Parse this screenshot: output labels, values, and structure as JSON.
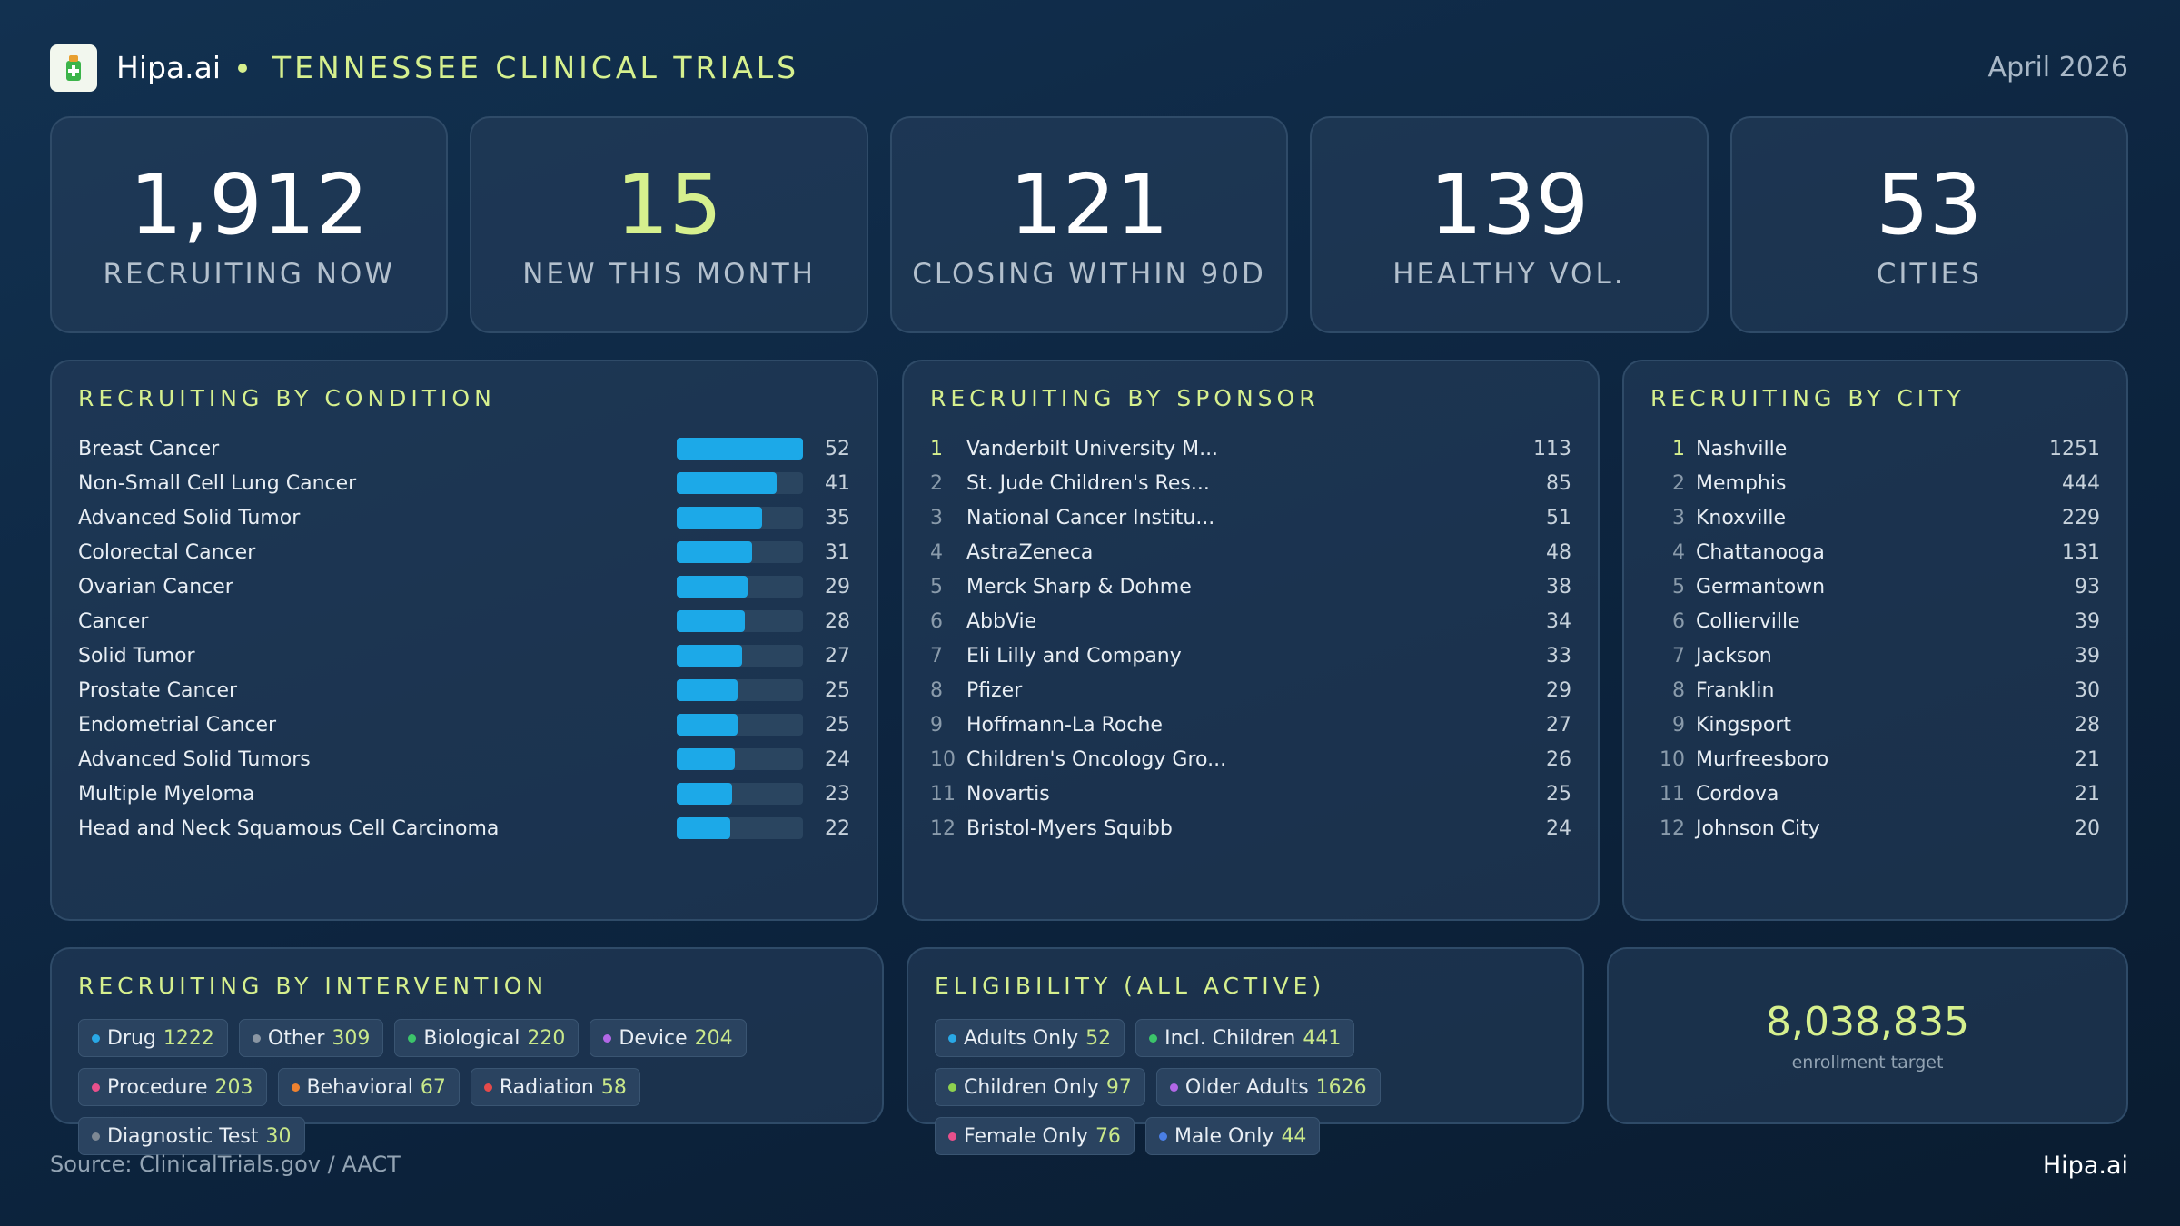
{
  "header": {
    "brand": "Hipa.ai",
    "title": "TENNESSEE CLINICAL TRIALS",
    "date": "April 2026"
  },
  "kpis": [
    {
      "value": "1,912",
      "label": "RECRUITING NOW",
      "color": "#ffffff"
    },
    {
      "value": "15",
      "label": "NEW THIS MONTH",
      "color": "#d6f08e"
    },
    {
      "value": "121",
      "label": "CLOSING WITHIN 90D",
      "color": "#ffffff"
    },
    {
      "value": "139",
      "label": "HEALTHY VOL.",
      "color": "#ffffff"
    },
    {
      "value": "53",
      "label": "CITIES",
      "color": "#ffffff"
    }
  ],
  "conditions": {
    "title": "RECRUITING BY CONDITION",
    "bar_color": "#1ca9e8",
    "rows": [
      {
        "name": "Breast Cancer",
        "value": 52
      },
      {
        "name": "Non-Small Cell Lung Cancer",
        "value": 41
      },
      {
        "name": "Advanced Solid Tumor",
        "value": 35
      },
      {
        "name": "Colorectal Cancer",
        "value": 31
      },
      {
        "name": "Ovarian Cancer",
        "value": 29
      },
      {
        "name": "Cancer",
        "value": 28
      },
      {
        "name": "Solid Tumor",
        "value": 27
      },
      {
        "name": "Prostate Cancer",
        "value": 25
      },
      {
        "name": "Endometrial Cancer",
        "value": 25
      },
      {
        "name": "Advanced Solid Tumors",
        "value": 24
      },
      {
        "name": "Multiple Myeloma",
        "value": 23
      },
      {
        "name": "Head and Neck Squamous Cell Carcinoma",
        "value": 22
      }
    ]
  },
  "sponsors": {
    "title": "RECRUITING BY SPONSOR",
    "rows": [
      {
        "rank": 1,
        "name": "Vanderbilt University M...",
        "value": 113
      },
      {
        "rank": 2,
        "name": "St. Jude Children's Res...",
        "value": 85
      },
      {
        "rank": 3,
        "name": "National Cancer Institu...",
        "value": 51
      },
      {
        "rank": 4,
        "name": "AstraZeneca",
        "value": 48
      },
      {
        "rank": 5,
        "name": "Merck Sharp & Dohme",
        "value": 38
      },
      {
        "rank": 6,
        "name": "AbbVie",
        "value": 34
      },
      {
        "rank": 7,
        "name": "Eli Lilly and Company",
        "value": 33
      },
      {
        "rank": 8,
        "name": "Pfizer",
        "value": 29
      },
      {
        "rank": 9,
        "name": "Hoffmann-La Roche",
        "value": 27
      },
      {
        "rank": 10,
        "name": "Children's Oncology Gro...",
        "value": 26
      },
      {
        "rank": 11,
        "name": "Novartis",
        "value": 25
      },
      {
        "rank": 12,
        "name": "Bristol-Myers Squibb",
        "value": 24
      }
    ]
  },
  "cities": {
    "title": "RECRUITING BY CITY",
    "rows": [
      {
        "rank": 1,
        "name": "Nashville",
        "value": 1251
      },
      {
        "rank": 2,
        "name": "Memphis",
        "value": 444
      },
      {
        "rank": 3,
        "name": "Knoxville",
        "value": 229
      },
      {
        "rank": 4,
        "name": "Chattanooga",
        "value": 131
      },
      {
        "rank": 5,
        "name": "Germantown",
        "value": 93
      },
      {
        "rank": 6,
        "name": "Collierville",
        "value": 39
      },
      {
        "rank": 7,
        "name": "Jackson",
        "value": 39
      },
      {
        "rank": 8,
        "name": "Franklin",
        "value": 30
      },
      {
        "rank": 9,
        "name": "Kingsport",
        "value": 28
      },
      {
        "rank": 10,
        "name": "Murfreesboro",
        "value": 21
      },
      {
        "rank": 11,
        "name": "Cordova",
        "value": 21
      },
      {
        "rank": 12,
        "name": "Johnson City",
        "value": 20
      }
    ]
  },
  "interventions": {
    "title": "RECRUITING BY INTERVENTION",
    "chips": [
      {
        "name": "Drug",
        "value": 1222,
        "color": "#29a8e6"
      },
      {
        "name": "Other",
        "value": 309,
        "color": "#8a96a3"
      },
      {
        "name": "Biological",
        "value": 220,
        "color": "#3cc46a"
      },
      {
        "name": "Device",
        "value": 204,
        "color": "#b267e6"
      },
      {
        "name": "Procedure",
        "value": 203,
        "color": "#e8508c"
      },
      {
        "name": "Behavioral",
        "value": 67,
        "color": "#ee8230"
      },
      {
        "name": "Radiation",
        "value": 58,
        "color": "#e54a4a"
      },
      {
        "name": "Diagnostic Test",
        "value": 30,
        "color": "#7d8894"
      }
    ]
  },
  "eligibility": {
    "title": "ELIGIBILITY (ALL ACTIVE)",
    "chips": [
      {
        "name": "Adults Only",
        "value": 52,
        "color": "#29a8e6"
      },
      {
        "name": "Incl. Children",
        "value": 441,
        "color": "#3cc46a"
      },
      {
        "name": "Children Only",
        "value": 97,
        "color": "#8fd14f"
      },
      {
        "name": "Older Adults",
        "value": 1626,
        "color": "#b267e6"
      },
      {
        "name": "Female Only",
        "value": 76,
        "color": "#e8508c"
      },
      {
        "name": "Male Only",
        "value": 44,
        "color": "#4a7fe6"
      }
    ]
  },
  "enrollment": {
    "value": "8,038,835",
    "label": "enrollment target"
  },
  "footer": {
    "source": "Source: ClinicalTrials.gov / AACT",
    "brand": "Hipa.ai"
  }
}
